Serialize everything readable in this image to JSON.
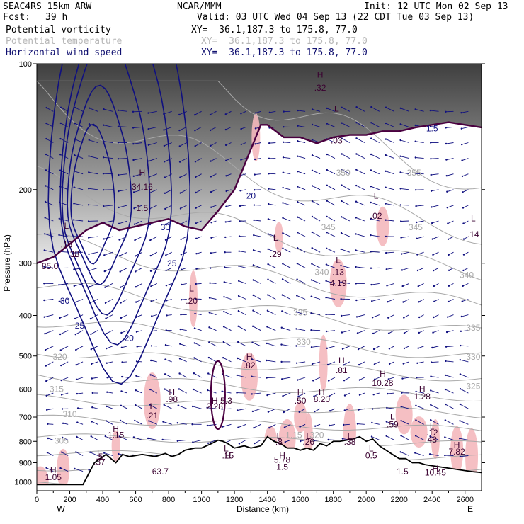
{
  "header": {
    "model": "SEAC4RS 15km ARW",
    "org": "NCAR/MMM",
    "init": "Init: 12 UTC Mon 02 Sep 13",
    "fcst_label": "Fcst:",
    "fcst_value": "39 h",
    "valid": "Valid: 03 UTC Wed 04 Sep 13 (22 CDT Tue 03 Sep 13)",
    "fields": [
      {
        "name": "Potential vorticity",
        "xy": "XY=  36.1,187.3 to 175.8, 77.0"
      },
      {
        "name": "Potential temperature",
        "xy": "XY=  36.1,187.3 to 175.8, 77.0"
      },
      {
        "name": "Horizontal wind speed",
        "xy": "XY=  36.1,187.3 to 175.8, 77.0"
      }
    ]
  },
  "colors": {
    "pv_contour": "#4a0040",
    "theta_contour": "#a8a8a8",
    "wind_contour": "#101080",
    "pv_shade": "#f4b8bc",
    "terrain": "#000000"
  },
  "chart_data": {
    "type": "cross-section",
    "ylabel": "Pressure (hPa)",
    "xlabel": "Distance (km)",
    "xlim": [
      0,
      2700
    ],
    "ylim": [
      1050,
      100
    ],
    "yscale": "log",
    "x_ticks": [
      "0",
      "200",
      "400",
      "600",
      "800",
      "1000",
      "1200",
      "1400",
      "1600",
      "1800",
      "2000",
      "2200",
      "2400",
      "2600"
    ],
    "y_ticks": [
      "100",
      "200",
      "300",
      "400",
      "500",
      "600",
      "700",
      "800",
      "900",
      "1000"
    ],
    "x_end_labels": {
      "left": "W",
      "right": "E"
    },
    "terrain_profile": {
      "x_km": [
        0,
        280,
        350,
        420,
        480,
        520,
        560,
        640,
        720,
        780,
        820,
        860,
        900,
        960,
        1000,
        1060,
        1100,
        1130,
        1160,
        1200,
        1260,
        1300,
        1360,
        1400,
        1440,
        1480,
        1520,
        1560,
        1600,
        1640,
        1680,
        1720,
        1760,
        1800,
        1840,
        1880,
        1920,
        1960,
        2000,
        2040,
        2080,
        2120,
        2160,
        2200,
        2240,
        2280,
        2320,
        2360,
        2400,
        2440,
        2480,
        2520,
        2560,
        2600,
        2640,
        2700
      ],
      "p_hpa": [
        1015,
        1015,
        900,
        860,
        900,
        860,
        870,
        860,
        870,
        855,
        870,
        860,
        840,
        830,
        830,
        810,
        795,
        800,
        810,
        830,
        820,
        830,
        820,
        780,
        800,
        810,
        830,
        830,
        840,
        830,
        840,
        810,
        820,
        800,
        800,
        795,
        790,
        780,
        800,
        790,
        820,
        840,
        860,
        880,
        880,
        900,
        900,
        910,
        915,
        920,
        925,
        930,
        935,
        940,
        945,
        950
      ]
    },
    "tropopause_pv": {
      "x_km": [
        0,
        100,
        200,
        300,
        400,
        500,
        600,
        700,
        800,
        900,
        1000,
        1100,
        1200,
        1300,
        1360,
        1400,
        1500,
        1600,
        1700,
        1800,
        1900,
        2000,
        2100,
        2200,
        2300,
        2400,
        2500,
        2600,
        2700
      ],
      "p_hpa": [
        300,
        290,
        270,
        250,
        240,
        250,
        245,
        240,
        235,
        245,
        250,
        225,
        200,
        160,
        140,
        140,
        150,
        150,
        155,
        150,
        148,
        148,
        145,
        145,
        142,
        140,
        138,
        140,
        142
      ]
    },
    "pv_labels": [
      {
        "text": "H",
        "x": 100,
        "p": 950
      },
      {
        "text": "1.05",
        "x": 100,
        "p": 990
      },
      {
        "text": "L",
        "x": 180,
        "p": 248
      },
      {
        "text": ".16",
        "x": 180,
        "p": 275
      },
      {
        "text": "H",
        "x": 640,
        "p": 185
      },
      {
        "text": "34.16",
        "x": 640,
        "p": 200
      },
      {
        "text": "1.5",
        "x": 640,
        "p": 225
      },
      {
        "text": "H",
        "x": 1290,
        "p": 510
      },
      {
        "text": ".82",
        "x": 1290,
        "p": 535
      },
      {
        "text": "L",
        "x": 1450,
        "p": 265
      },
      {
        "text": ".29",
        "x": 1450,
        "p": 290
      },
      {
        "text": "L",
        "x": 1830,
        "p": 300
      },
      {
        "text": ".13",
        "x": 1830,
        "p": 320
      },
      {
        "text": "4.19",
        "x": 1830,
        "p": 340
      },
      {
        "text": "H",
        "x": 1850,
        "p": 520
      },
      {
        "text": ".81",
        "x": 1850,
        "p": 550
      },
      {
        "text": "H",
        "x": 2100,
        "p": 560
      },
      {
        "text": "10.28",
        "x": 2100,
        "p": 590
      },
      {
        "text": "L",
        "x": 2060,
        "p": 210
      },
      {
        "text": ".02",
        "x": 2060,
        "p": 235
      },
      {
        "text": "L",
        "x": 1820,
        "p": 130
      },
      {
        "text": ".03",
        "x": 1820,
        "p": 155
      },
      {
        "text": "H",
        "x": 1720,
        "p": 108
      },
      {
        "text": ".32",
        "x": 1720,
        "p": 116
      },
      {
        "text": "L",
        "x": 2650,
        "p": 238
      },
      {
        "text": ".14",
        "x": 2650,
        "p": 260
      },
      {
        "text": "H",
        "x": 820,
        "p": 620
      },
      {
        "text": ".98",
        "x": 820,
        "p": 645
      },
      {
        "text": "L",
        "x": 940,
        "p": 350
      },
      {
        "text": ".20",
        "x": 940,
        "p": 375
      },
      {
        "text": "H",
        "x": 1080,
        "p": 650
      },
      {
        "text": "2.28",
        "x": 1080,
        "p": 670
      },
      {
        "text": "5.3",
        "x": 1150,
        "p": 650
      },
      {
        "text": "L",
        "x": 700,
        "p": 670
      },
      {
        "text": ".21",
        "x": 700,
        "p": 705
      },
      {
        "text": "H",
        "x": 1600,
        "p": 620
      },
      {
        "text": ".50",
        "x": 1600,
        "p": 650
      },
      {
        "text": "H",
        "x": 1730,
        "p": 620
      },
      {
        "text": "8.20",
        "x": 1730,
        "p": 645
      },
      {
        "text": "H",
        "x": 2340,
        "p": 610
      },
      {
        "text": "1.28",
        "x": 2340,
        "p": 635
      },
      {
        "text": "L",
        "x": 2160,
        "p": 710
      },
      {
        "text": ".59",
        "x": 2160,
        "p": 740
      },
      {
        "text": "H",
        "x": 480,
        "p": 760
      },
      {
        "text": "1.15",
        "x": 480,
        "p": 785
      },
      {
        "text": "L",
        "x": 380,
        "p": 865
      },
      {
        "text": ".5",
        "x": 380,
        "p": 885
      },
      {
        "text": ".37",
        "x": 380,
        "p": 910
      },
      {
        "text": "L",
        "x": 1470,
        "p": 790
      },
      {
        "text": ".8",
        "x": 1470,
        "p": 815
      },
      {
        "text": "H",
        "x": 1490,
        "p": 880
      },
      {
        "text": "5.78",
        "x": 1490,
        "p": 900
      },
      {
        "text": "1.5",
        "x": 1490,
        "p": 935
      },
      {
        "text": "L",
        "x": 1650,
        "p": 790
      },
      {
        "text": ".26",
        "x": 1650,
        "p": 815
      },
      {
        "text": "L",
        "x": 1900,
        "p": 790
      },
      {
        "text": ".38",
        "x": 1900,
        "p": 815
      },
      {
        "text": "L",
        "x": 2400,
        "p": 750
      },
      {
        "text": ".12",
        "x": 2400,
        "p": 775
      },
      {
        "text": "48",
        "x": 2400,
        "p": 805
      },
      {
        "text": "H",
        "x": 2550,
        "p": 830
      },
      {
        "text": "7.82",
        "x": 2550,
        "p": 860
      },
      {
        "text": "H",
        "x": 2420,
        "p": 945
      },
      {
        "text": "10.45",
        "x": 2420,
        "p": 965
      },
      {
        "text": "L",
        "x": 2030,
        "p": 845
      },
      {
        "text": "0.5",
        "x": 2030,
        "p": 880
      },
      {
        "text": "L",
        "x": 1150,
        "p": 845
      },
      {
        "text": "H",
        "x": 1160,
        "p": 880
      },
      {
        "text": ".15",
        "x": 1160,
        "p": 880
      },
      {
        "text": "63.7",
        "x": 750,
        "p": 960
      },
      {
        "text": "L",
        "x": 230,
        "p": 290
      },
      {
        "text": "38",
        "x": 230,
        "p": 290
      },
      {
        "text": "85.0",
        "x": 80,
        "p": 310
      },
      {
        "text": "1.5",
        "x": 2220,
        "p": 960
      }
    ],
    "theta_labels": [
      {
        "text": "305",
        "x": 150,
        "p": 810
      },
      {
        "text": "310",
        "x": 200,
        "p": 700
      },
      {
        "text": "315",
        "x": 120,
        "p": 610
      },
      {
        "text": "320",
        "x": 140,
        "p": 510
      },
      {
        "text": "325",
        "x": 2650,
        "p": 600
      },
      {
        "text": "330",
        "x": 2650,
        "p": 510
      },
      {
        "text": "330",
        "x": 1620,
        "p": 470
      },
      {
        "text": "335",
        "x": 2650,
        "p": 435
      },
      {
        "text": "335",
        "x": 1600,
        "p": 400
      },
      {
        "text": "340",
        "x": 2610,
        "p": 325
      },
      {
        "text": "340",
        "x": 1730,
        "p": 320
      },
      {
        "text": "345",
        "x": 2300,
        "p": 250
      },
      {
        "text": "345",
        "x": 1770,
        "p": 250
      },
      {
        "text": "350",
        "x": 1860,
        "p": 185
      },
      {
        "text": "355",
        "x": 2290,
        "p": 185
      },
      {
        "text": "320",
        "x": 1700,
        "p": 785
      },
      {
        "text": "1.15",
        "x": 1560,
        "p": 785
      }
    ],
    "wind_labels": [
      {
        "text": "20",
        "x": 1300,
        "p": 210
      },
      {
        "text": "25",
        "x": 820,
        "p": 305
      },
      {
        "text": "30",
        "x": 780,
        "p": 250
      },
      {
        "text": "30",
        "x": 170,
        "p": 375
      },
      {
        "text": "25",
        "x": 260,
        "p": 430
      },
      {
        "text": "20",
        "x": 560,
        "p": 460
      },
      {
        "text": "35",
        "x": 230,
        "p": 290
      },
      {
        "text": "1.5",
        "x": 2400,
        "p": 145
      }
    ]
  }
}
